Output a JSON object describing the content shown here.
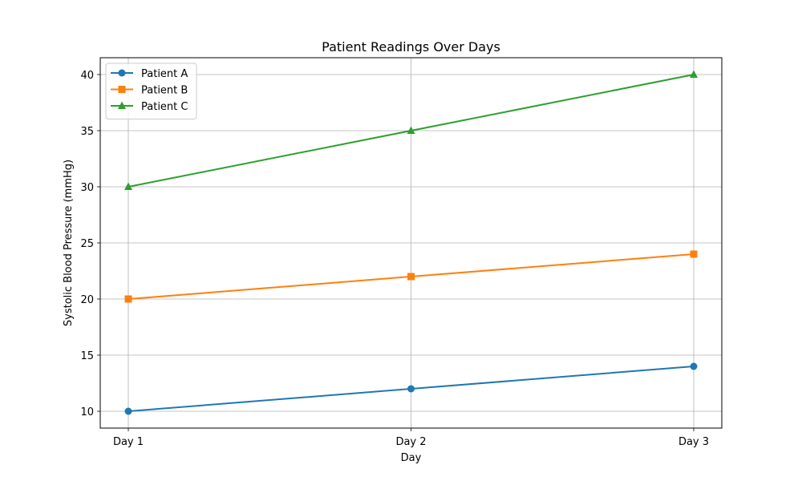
{
  "chart_data": {
    "type": "line",
    "title": "Patient Readings Over Days",
    "xlabel": "Day",
    "ylabel": "Systolic Blood Pressure (mmHg)",
    "categories": [
      "Day 1",
      "Day 2",
      "Day 3"
    ],
    "yticks": [
      10,
      15,
      20,
      25,
      30,
      35,
      40
    ],
    "ylim": [
      8.5,
      41.5
    ],
    "grid": true,
    "legend_position": "top-left",
    "series": [
      {
        "name": "Patient A",
        "values": [
          10,
          12,
          14
        ],
        "color": "#1f77b4",
        "marker": "circle"
      },
      {
        "name": "Patient B",
        "values": [
          20,
          22,
          24
        ],
        "color": "#ff7f0e",
        "marker": "square"
      },
      {
        "name": "Patient C",
        "values": [
          30,
          35,
          40
        ],
        "color": "#2ca02c",
        "marker": "triangle"
      }
    ]
  }
}
